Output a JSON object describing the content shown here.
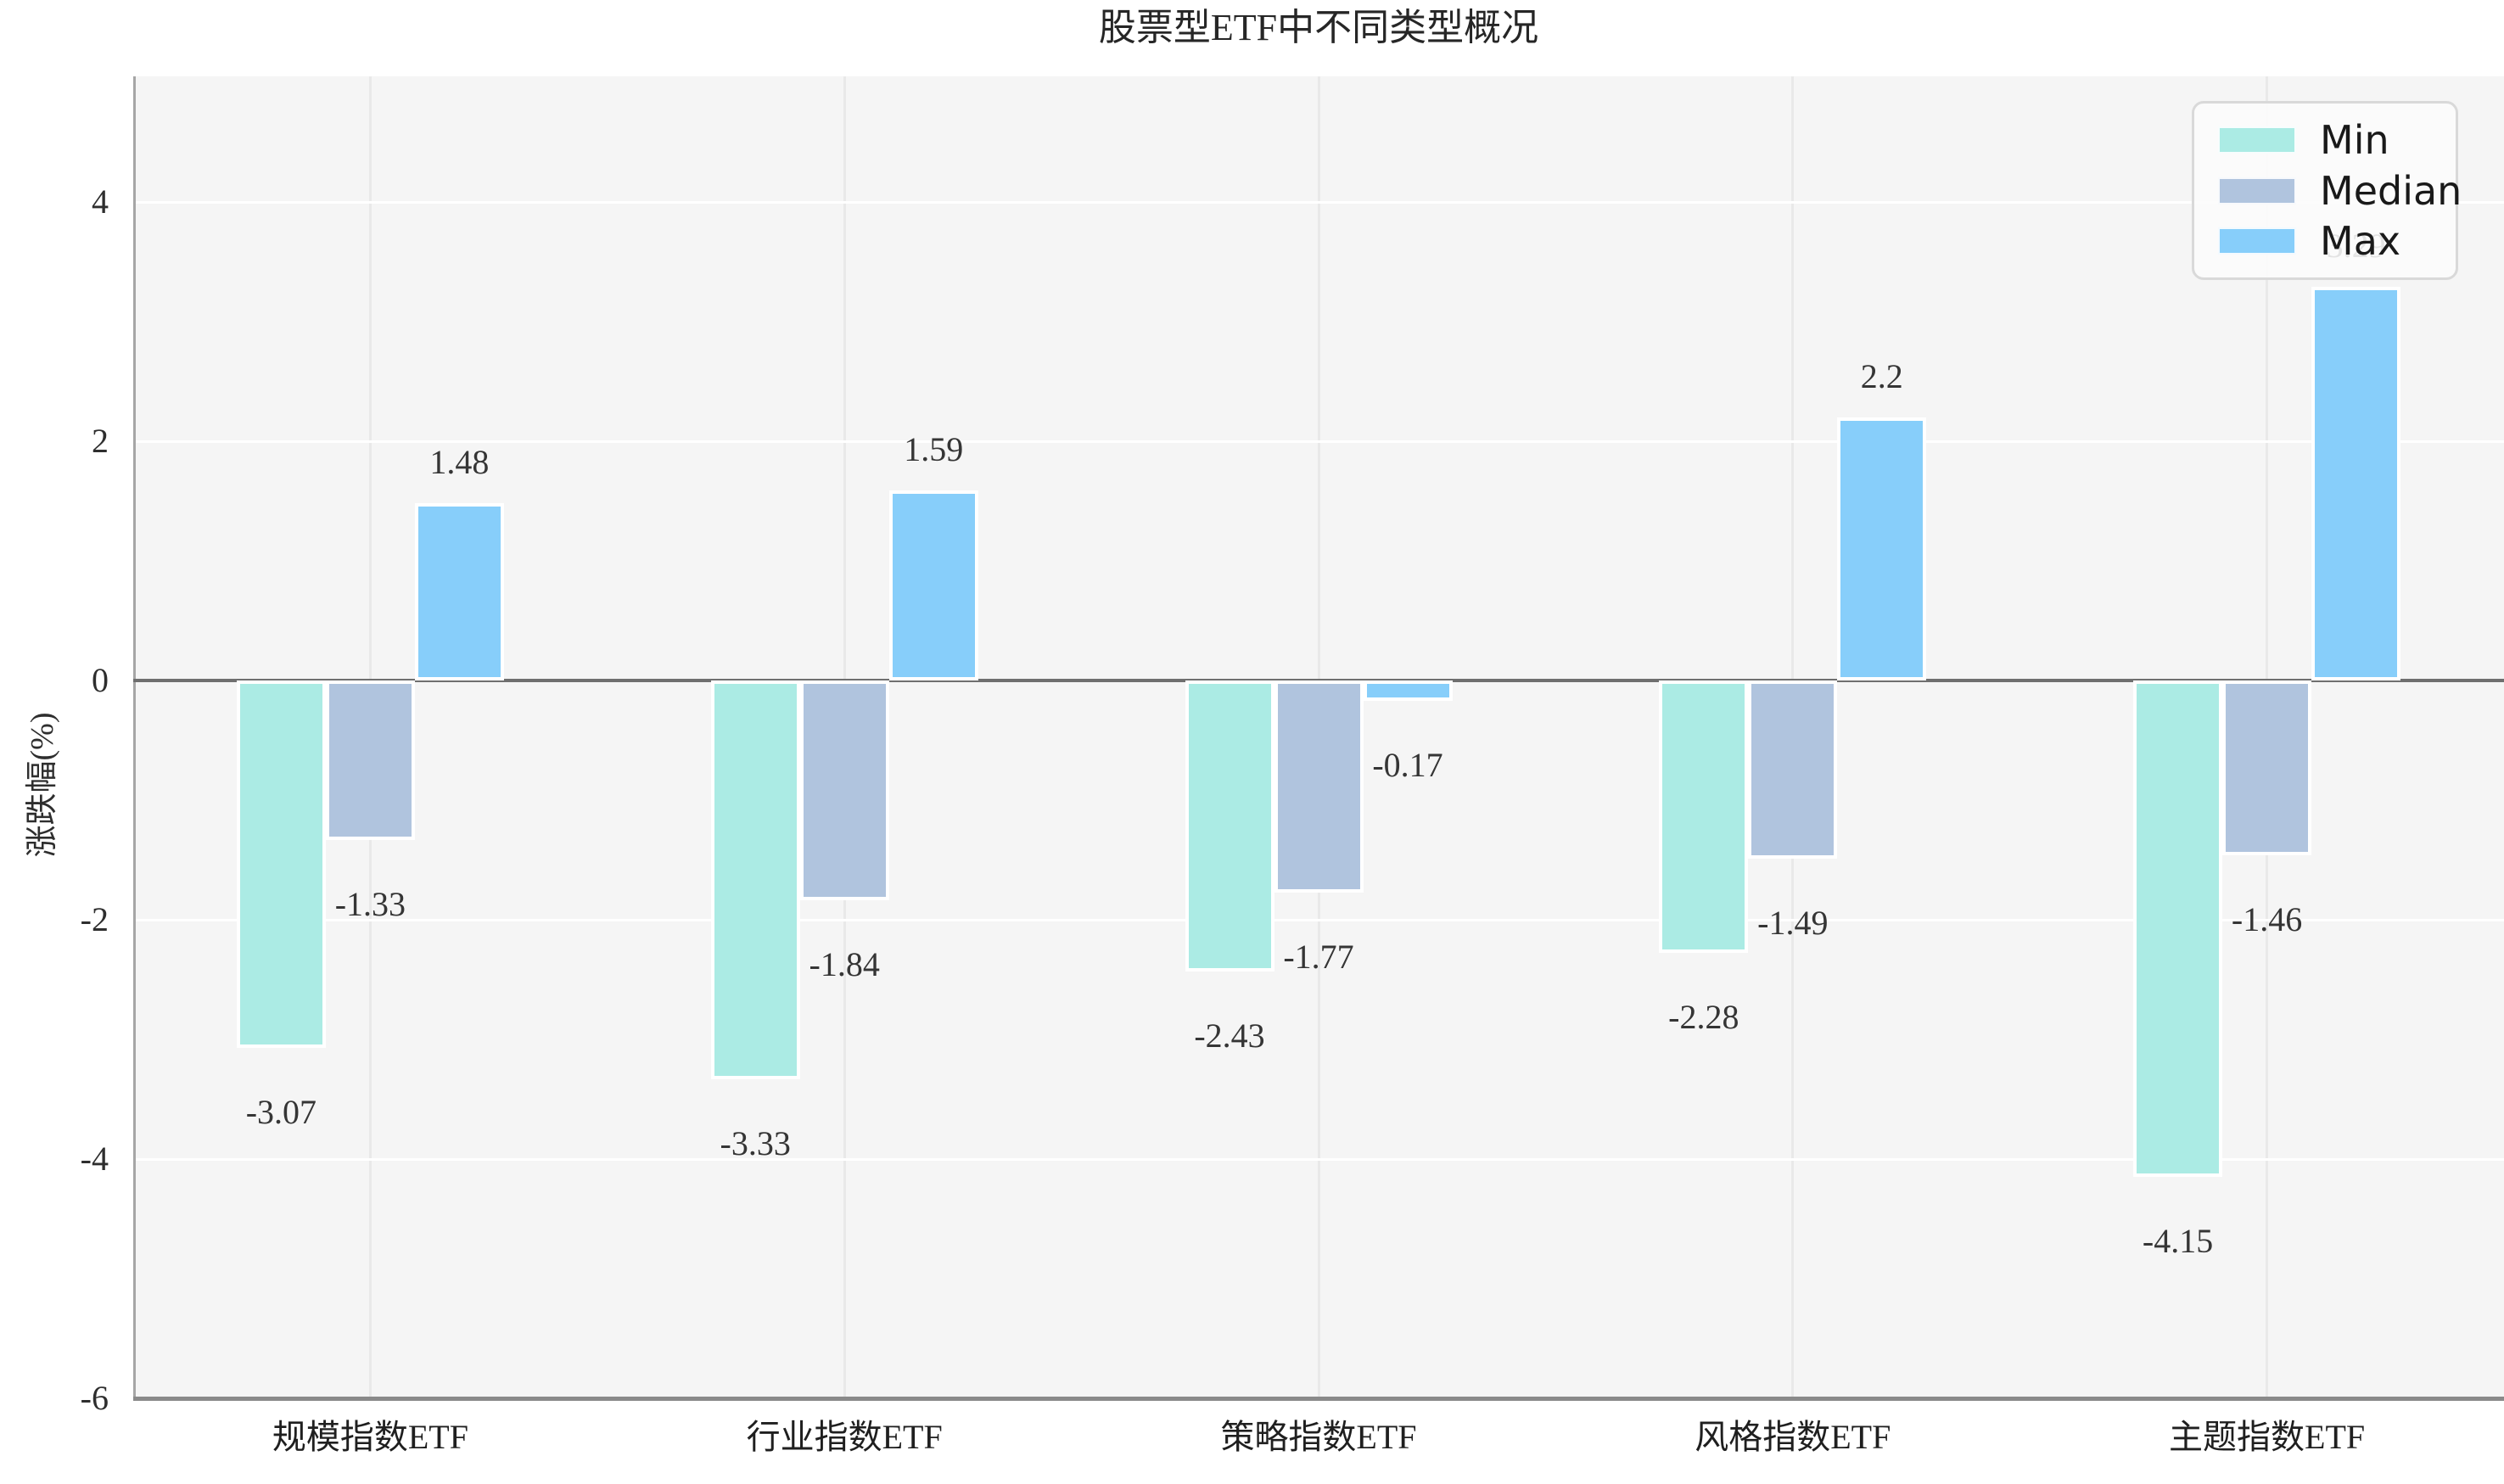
{
  "title": "股票型ETF中不同类型概况",
  "y_axis_label": "涨跌幅(%)",
  "chart_data": {
    "type": "bar",
    "title": "股票型ETF中不同类型概况",
    "xlabel": "",
    "ylabel": "涨跌幅(%)",
    "categories": [
      "规模指数ETF",
      "行业指数ETF",
      "策略指数ETF",
      "风格指数ETF",
      "主题指数ETF"
    ],
    "series": [
      {
        "name": "Min",
        "color": "#ABEBE4",
        "values": [
          -3.07,
          -3.33,
          -2.43,
          -2.28,
          -4.15
        ]
      },
      {
        "name": "Median",
        "color": "#B0C4DE",
        "values": [
          -1.33,
          -1.84,
          -1.77,
          -1.49,
          -1.46
        ]
      },
      {
        "name": "Max",
        "color": "#87CEFA",
        "values": [
          1.48,
          1.59,
          -0.17,
          2.2,
          3.29
        ]
      }
    ],
    "bar_value_labels": {
      "Min": [
        "-3.07",
        "-3.33",
        "-2.43",
        "-2.28",
        "-4.15"
      ],
      "Median": [
        "-1.33",
        "-1.84",
        "-1.77",
        "-1.49",
        "-1.46"
      ],
      "Max": [
        "1.48",
        "1.59",
        "-0.17",
        "2.2",
        "3.29"
      ]
    },
    "yticks": [
      4,
      2,
      0,
      -2,
      -4,
      -6
    ],
    "ylim": [
      -6,
      5.05
    ],
    "grid": true,
    "plot_background": "#f5f5f5",
    "zero_line_color": "#6f6f6f",
    "legend_position": "upper right",
    "legend_entries": [
      "Min",
      "Median",
      "Max"
    ]
  }
}
